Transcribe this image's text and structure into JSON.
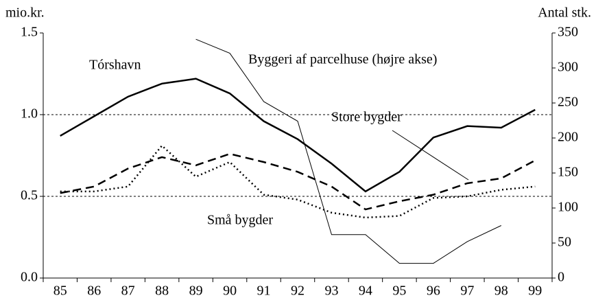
{
  "chart_data": {
    "type": "line",
    "y_label": "mio.kr.",
    "y2_label": "Antal stk.",
    "categories": [
      "85",
      "86",
      "87",
      "88",
      "89",
      "90",
      "91",
      "92",
      "93",
      "94",
      "95",
      "96",
      "97",
      "98",
      "99"
    ],
    "series": [
      {
        "name": "Tórshavn",
        "color": "#000000",
        "style": "solid-thick",
        "values": [
          0.87,
          0.99,
          1.11,
          1.19,
          1.22,
          1.13,
          0.96,
          0.85,
          0.7,
          0.53,
          0.65,
          0.86,
          0.93,
          0.92,
          1.03
        ]
      },
      {
        "name": "Store bygder",
        "color": "#000000",
        "style": "dashed",
        "values": [
          0.52,
          0.56,
          0.67,
          0.74,
          0.69,
          0.76,
          0.71,
          0.65,
          0.56,
          0.42,
          0.47,
          0.51,
          0.58,
          0.61,
          0.72
        ]
      },
      {
        "name": "Små bygder",
        "color": "#000000",
        "style": "dotted",
        "values": [
          0.53,
          0.53,
          0.56,
          0.81,
          0.62,
          0.71,
          0.51,
          0.48,
          0.4,
          0.37,
          0.38,
          0.49,
          0.5,
          0.54,
          0.56
        ]
      },
      {
        "name": "Byggeri af parcelhuse (højre akse)",
        "color": "#000000",
        "style": "thin",
        "axis": "y2",
        "values": [
          null,
          null,
          null,
          null,
          341,
          321,
          252,
          224,
          62,
          62,
          21,
          21,
          52,
          75,
          null
        ]
      }
    ],
    "ylim": [
      0,
      1.5
    ],
    "yticks": [
      {
        "value": 0,
        "label": "0.0"
      },
      {
        "value": 0.5,
        "label": "0.5"
      },
      {
        "value": 1,
        "label": "1.0"
      },
      {
        "value": 1.5,
        "label": "1.5"
      }
    ],
    "y2lim": [
      0,
      350
    ],
    "y2ticks": [
      0,
      50,
      100,
      150,
      200,
      250,
      300,
      350
    ],
    "grid": true
  }
}
